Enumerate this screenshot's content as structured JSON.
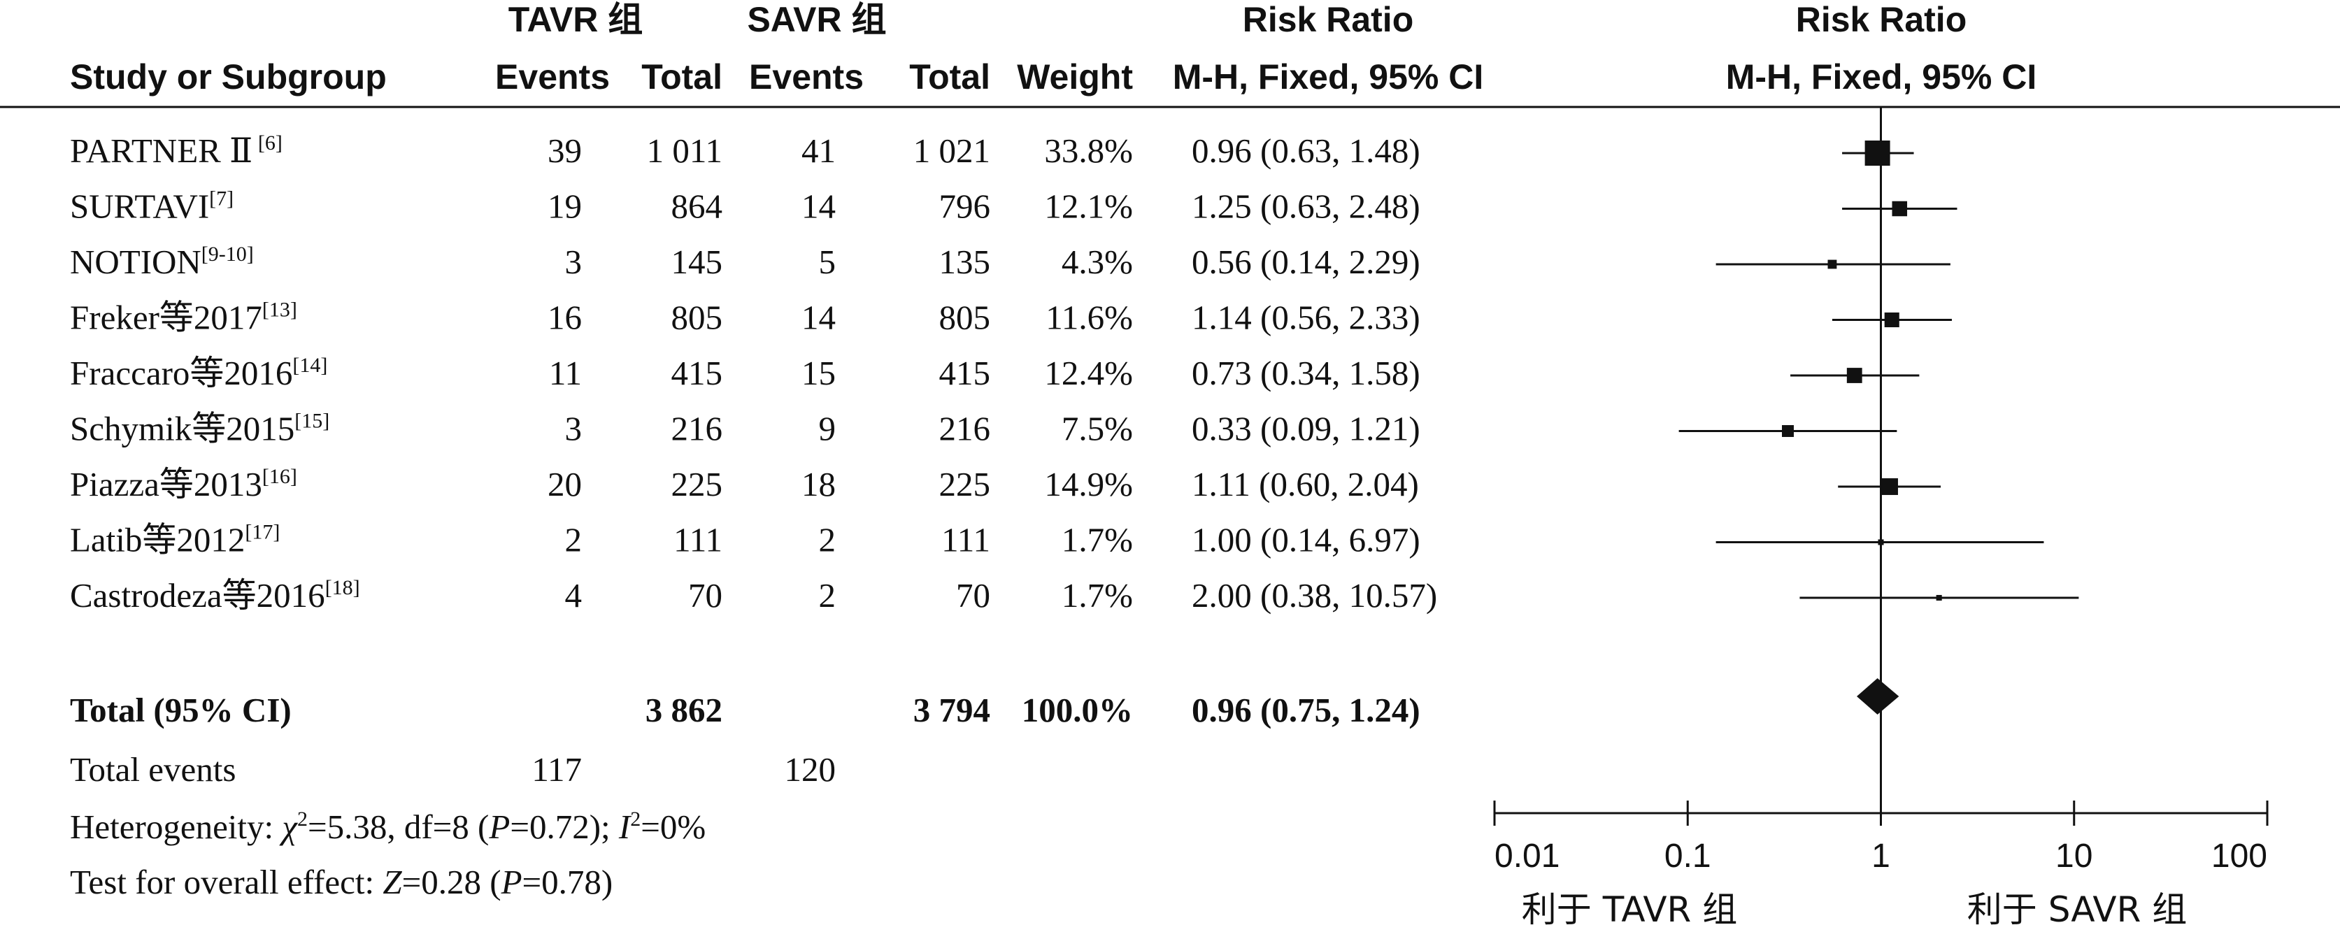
{
  "headers": {
    "group1": "TAVR 组",
    "group2": "SAVR 组",
    "rr_title": "Risk Ratio",
    "rr_method": "M-H, Fixed, 95% CI",
    "plot_title": "Risk Ratio",
    "plot_method": "M-H, Fixed, 95% CI",
    "study": "Study or Subgroup",
    "events1": "Events",
    "total1": "Total",
    "events2": "Events",
    "total2": "Total",
    "weight": "Weight"
  },
  "rows": [
    {
      "name": "PARTNER Ⅱ",
      "ref": " [6]",
      "e1": "39",
      "t1": "1 011",
      "e2": "41",
      "t2": "1 021",
      "weight": "33.8%",
      "ci": "0.96 (0.63, 1.48)"
    },
    {
      "name": "SURTAVI",
      "ref": "[7]",
      "e1": "19",
      "t1": "864",
      "e2": "14",
      "t2": "796",
      "weight": "12.1%",
      "ci": "1.25 (0.63, 2.48)"
    },
    {
      "name": "NOTION",
      "ref": "[9-10]",
      "e1": "3",
      "t1": "145",
      "e2": "5",
      "t2": "135",
      "weight": "4.3%",
      "ci": "0.56 (0.14, 2.29)"
    },
    {
      "name": "Freker等2017",
      "ref": "[13]",
      "e1": "16",
      "t1": "805",
      "e2": "14",
      "t2": "805",
      "weight": "11.6%",
      "ci": "1.14 (0.56, 2.33)"
    },
    {
      "name": "Fraccaro等2016",
      "ref": "[14]",
      "e1": "11",
      "t1": "415",
      "e2": "15",
      "t2": "415",
      "weight": "12.4%",
      "ci": "0.73 (0.34, 1.58)"
    },
    {
      "name": "Schymik等2015",
      "ref": "[15]",
      "e1": "3",
      "t1": "216",
      "e2": "9",
      "t2": "216",
      "weight": "7.5%",
      "ci": "0.33 (0.09, 1.21)"
    },
    {
      "name": "Piazza等2013",
      "ref": "[16]",
      "e1": "20",
      "t1": "225",
      "e2": "18",
      "t2": "225",
      "weight": "14.9%",
      "ci": "1.11 (0.60, 2.04)"
    },
    {
      "name": "Latib等2012",
      "ref": "[17]",
      "e1": "2",
      "t1": "111",
      "e2": "2",
      "t2": "111",
      "weight": "1.7%",
      "ci": "1.00 (0.14, 6.97)"
    },
    {
      "name": "Castrodeza等2016",
      "ref": "[18]",
      "e1": "4",
      "t1": "70",
      "e2": "2",
      "t2": "70",
      "weight": "1.7%",
      "ci": "2.00 (0.38, 10.57)"
    }
  ],
  "total": {
    "label": "Total (95% CI)",
    "t1": "3 862",
    "t2": "3 794",
    "weight": "100.0%",
    "ci": "0.96 (0.75, 1.24)"
  },
  "total_events": {
    "label": "Total events",
    "e1": "117",
    "e2": "120"
  },
  "heterogeneity": {
    "label": "Heterogeneity: ",
    "chi_sym": "χ",
    "chi_sup": "2",
    "chi_val": "=5.38, df=8 (",
    "p_sym": "P",
    "p_val": "=0.72); ",
    "i_sym": "I",
    "i_sup": "2",
    "i_val": "=0%"
  },
  "overall_effect": {
    "label": "Test for overall effect: ",
    "z_sym": "Z",
    "z_val": "=0.28 (",
    "p_sym": "P",
    "p_val": "=0.78)"
  },
  "axis_tick_labels": [
    "0.01",
    "0.1",
    "1",
    "10",
    "100"
  ],
  "favors_left": "利于 TAVR 组",
  "favors_right": "利于 SAVR 组",
  "chart_data": {
    "type": "forest",
    "scale": "log",
    "xlim": [
      0.01,
      100
    ],
    "ticks": [
      0.01,
      0.1,
      1,
      10,
      100
    ],
    "reference_line": 1,
    "studies": [
      {
        "rr": 0.96,
        "lo": 0.63,
        "hi": 1.48,
        "weight": 33.8
      },
      {
        "rr": 1.25,
        "lo": 0.63,
        "hi": 2.48,
        "weight": 12.1
      },
      {
        "rr": 0.56,
        "lo": 0.14,
        "hi": 2.29,
        "weight": 4.3
      },
      {
        "rr": 1.14,
        "lo": 0.56,
        "hi": 2.33,
        "weight": 11.6
      },
      {
        "rr": 0.73,
        "lo": 0.34,
        "hi": 1.58,
        "weight": 12.4
      },
      {
        "rr": 0.33,
        "lo": 0.09,
        "hi": 1.21,
        "weight": 7.5
      },
      {
        "rr": 1.11,
        "lo": 0.6,
        "hi": 2.04,
        "weight": 14.9
      },
      {
        "rr": 1.0,
        "lo": 0.14,
        "hi": 6.97,
        "weight": 1.7
      },
      {
        "rr": 2.0,
        "lo": 0.38,
        "hi": 10.57,
        "weight": 1.7
      }
    ],
    "pooled": {
      "rr": 0.96,
      "lo": 0.75,
      "hi": 1.24
    }
  }
}
